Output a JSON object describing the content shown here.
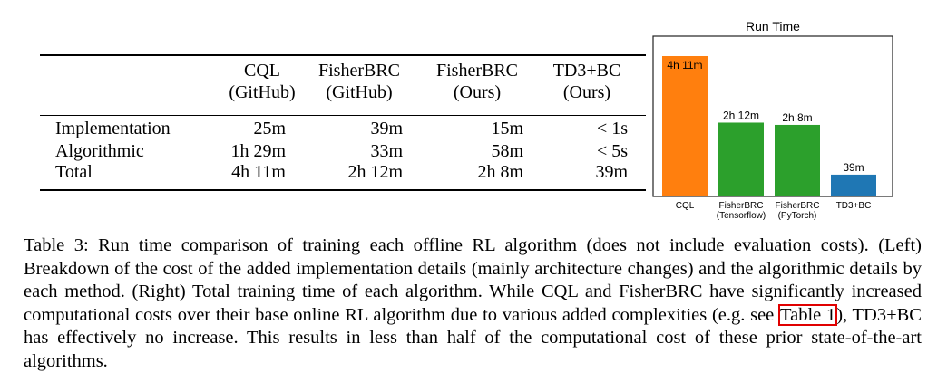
{
  "table": {
    "columns": [
      {
        "line1": "CQL",
        "line2": "(GitHub)"
      },
      {
        "line1": "FisherBRC",
        "line2": "(GitHub)"
      },
      {
        "line1": "FisherBRC",
        "line2": "(Ours)"
      },
      {
        "line1": "TD3+BC",
        "line2": "(Ours)"
      }
    ],
    "rows": [
      {
        "label": "Implementation",
        "values": [
          "25m",
          "39m",
          "15m",
          "< 1s"
        ]
      },
      {
        "label": "Algorithmic",
        "values": [
          "1h 29m",
          "33m",
          "58m",
          "< 5s"
        ]
      },
      {
        "label": "Total",
        "values": [
          "4h 11m",
          "2h 12m",
          "2h 8m",
          "39m"
        ]
      }
    ]
  },
  "chart_data": {
    "type": "bar",
    "title": "Run Time",
    "categories": [
      [
        "CQL"
      ],
      [
        "FisherBRC",
        "(Tensorflow)"
      ],
      [
        "FisherBRC",
        "(PyTorch)"
      ],
      [
        "TD3+BC"
      ]
    ],
    "values_minutes": [
      251,
      132,
      128,
      39
    ],
    "value_labels": [
      "4h 11m",
      "2h 12m",
      "2h 8m",
      "39m"
    ],
    "colors": [
      "#ff7f0e",
      "#2ca02c",
      "#2ca02c",
      "#1f77b4"
    ],
    "ylim": [
      0,
      260
    ],
    "xlabel": "",
    "ylabel": "",
    "grid": false
  },
  "caption": {
    "before_ref": "Table 3: Run time comparison of training each offline RL algorithm (does not include evaluation costs). (Left) Breakdown of the cost of the added implementation details (mainly architecture changes) and the algorithmic details by each method. (Right) Total training time of each algorithm. While CQL and FisherBRC have significantly increased computational costs over their base online RL algorithm due to various added complexities (e.g. see ",
    "ref": "Table 1",
    "after_ref": "), TD3+BC has effectively no increase. This results in less than half of the computational cost of these prior state-of-the-art algorithms."
  }
}
